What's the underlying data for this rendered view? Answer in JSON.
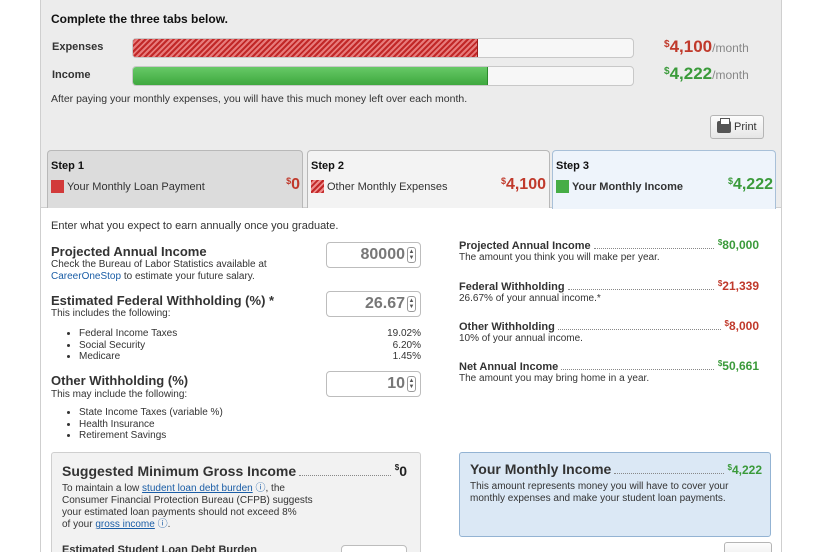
{
  "intro": "Complete the three tabs below.",
  "bars": {
    "expenses": {
      "label": "Expenses",
      "fill_fraction": 0.69,
      "value": "4,100",
      "per": "/month"
    },
    "income": {
      "label": "Income",
      "fill_fraction": 0.71,
      "value": "4,222",
      "per": "/month"
    },
    "currency": "$",
    "note": "After paying your monthly expenses, you will have this much money left over each month."
  },
  "print_label": "Print",
  "tabs": [
    {
      "step": "Step 1",
      "label": "Your Monthly Loan Payment",
      "value": "0",
      "color": "#d23a3a"
    },
    {
      "step": "Step 2",
      "label": "Other Monthly Expenses",
      "value": "4,100",
      "color": "#c12727"
    },
    {
      "step": "Step 3",
      "label": "Your Monthly Income",
      "value": "4,222",
      "color": "#46ad46",
      "active": true
    }
  ],
  "form": {
    "instruction": "Enter what you expect to earn annually once you graduate.",
    "income": {
      "label": "Projected Annual Income",
      "help_pre": "Check the Bureau of Labor Statistics available at",
      "help_link": "CareerOneStop",
      "help_post": "to estimate your future salary.",
      "value": "80000"
    },
    "federal": {
      "label": "Estimated Federal Withholding (%) *",
      "help": "This includes the following:",
      "value": "26.67",
      "items": [
        {
          "name": "Federal Income Taxes",
          "pct": "19.02%"
        },
        {
          "name": "Social Security",
          "pct": "6.20%"
        },
        {
          "name": "Medicare",
          "pct": "1.45%"
        }
      ]
    },
    "other": {
      "label": "Other Withholding (%)",
      "help": "This may include the following:",
      "value": "10",
      "items": [
        "State Income Taxes (variable %)",
        "Health Insurance",
        "Retirement Savings"
      ]
    }
  },
  "summary": [
    {
      "title": "Projected Annual Income",
      "value": "80,000",
      "desc": "The amount you think you will make per year.",
      "color": "green"
    },
    {
      "title": "Federal Withholding",
      "value": "21,339",
      "desc": "26.67% of your annual income.*",
      "color": "red"
    },
    {
      "title": "Other Withholding",
      "value": "8,000",
      "desc": "10% of your annual income.",
      "color": "red"
    },
    {
      "title": "Net Annual Income",
      "value": "50,661",
      "desc": "The amount you may bring home in a year.",
      "color": "green"
    }
  ],
  "gross_box": {
    "title": "Suggested Minimum Gross Income",
    "value": "0",
    "text1": "To maintain a low",
    "link1": "student loan debt burden",
    "text2": ", the",
    "text3": "Consumer Financial Protection Bureau (CFPB) suggests",
    "text4": "your estimated loan payments should not exceed 8%",
    "text5": "of your",
    "link2": "gross income",
    "text6": ".",
    "next_title": "Estimated Student Loan Debt Burden"
  },
  "monthly_box": {
    "title": "Your Monthly Income",
    "value": "4,222",
    "desc": "This amount represents money you will have to cover your monthly expenses and make your student loan payments."
  }
}
